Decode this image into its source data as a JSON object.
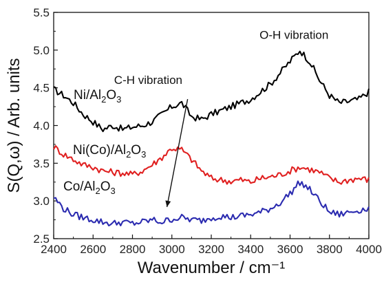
{
  "chart_data": {
    "type": "line",
    "xlabel": "Wavenumber / cm⁻¹",
    "ylabel": "S(Q,ω) / Arb. units",
    "xlim": [
      2400,
      4000
    ],
    "ylim": [
      2.5,
      5.5
    ],
    "xticks": [
      2400,
      2600,
      2800,
      3000,
      3200,
      3400,
      3600,
      3800,
      4000
    ],
    "yticks": [
      2.5,
      3.0,
      3.5,
      4.0,
      4.5,
      5.0,
      5.5
    ],
    "xtick_labels": [
      "2400",
      "2600",
      "2800",
      "3000",
      "3200",
      "3400",
      "3600",
      "3800",
      "4000"
    ],
    "ytick_labels": [
      "2.5",
      "3.0",
      "3.5",
      "4.0",
      "4.5",
      "5.0",
      "5.5"
    ],
    "grid": false,
    "series": [
      {
        "name": "Ni/Al2O3",
        "label_main": "Ni/Al",
        "label_sub": "2",
        "label_tail": "O",
        "label_sub2": "3",
        "color": "#000000",
        "x": [
          2400,
          2450,
          2500,
          2550,
          2600,
          2650,
          2700,
          2750,
          2800,
          2850,
          2900,
          2950,
          3000,
          3050,
          3100,
          3150,
          3200,
          3250,
          3300,
          3350,
          3400,
          3450,
          3500,
          3550,
          3600,
          3650,
          3700,
          3750,
          3800,
          3850,
          3900,
          3950,
          4000
        ],
        "y": [
          4.48,
          4.4,
          4.3,
          4.15,
          4.05,
          3.95,
          4.0,
          3.95,
          3.98,
          4.0,
          4.05,
          4.15,
          4.25,
          4.3,
          4.12,
          4.08,
          4.15,
          4.2,
          4.25,
          4.3,
          4.35,
          4.45,
          4.55,
          4.7,
          4.85,
          5.0,
          4.85,
          4.6,
          4.4,
          4.3,
          4.32,
          4.35,
          4.45
        ]
      },
      {
        "name": "Ni(Co)/Al2O3",
        "label_main": "Ni(Co)/Al",
        "label_sub": "2",
        "label_tail": "O",
        "label_sub2": "3",
        "color": "#e02020",
        "x": [
          2400,
          2450,
          2500,
          2550,
          2600,
          2650,
          2700,
          2750,
          2800,
          2850,
          2900,
          2950,
          3000,
          3050,
          3100,
          3150,
          3200,
          3250,
          3300,
          3350,
          3400,
          3450,
          3500,
          3550,
          3600,
          3650,
          3700,
          3750,
          3800,
          3850,
          3900,
          3950,
          4000
        ],
        "y": [
          3.72,
          3.62,
          3.55,
          3.48,
          3.45,
          3.4,
          3.38,
          3.37,
          3.35,
          3.4,
          3.48,
          3.58,
          3.7,
          3.68,
          3.55,
          3.4,
          3.3,
          3.28,
          3.26,
          3.28,
          3.25,
          3.3,
          3.32,
          3.35,
          3.4,
          3.45,
          3.42,
          3.38,
          3.3,
          3.25,
          3.28,
          3.3,
          3.28
        ]
      },
      {
        "name": "Co/Al2O3",
        "label_main": "Co/Al",
        "label_sub": "2",
        "label_tail": "O",
        "label_sub2": "3",
        "color": "#2b2bb0",
        "x": [
          2400,
          2450,
          2500,
          2550,
          2600,
          2650,
          2700,
          2750,
          2800,
          2850,
          2900,
          2950,
          3000,
          3050,
          3100,
          3150,
          3200,
          3250,
          3300,
          3350,
          3400,
          3450,
          3500,
          3550,
          3600,
          3650,
          3700,
          3750,
          3800,
          3850,
          3900,
          3950,
          4000
        ],
        "y": [
          3.05,
          2.9,
          2.82,
          2.78,
          2.75,
          2.72,
          2.7,
          2.72,
          2.7,
          2.72,
          2.75,
          2.72,
          2.76,
          2.78,
          2.75,
          2.74,
          2.78,
          2.8,
          2.78,
          2.8,
          2.82,
          2.85,
          2.9,
          2.98,
          3.1,
          3.25,
          3.15,
          3.0,
          2.85,
          2.82,
          2.85,
          2.88,
          2.9
        ]
      }
    ],
    "annotations": [
      {
        "text": "C-H vibration",
        "x": 2880,
        "y": 4.55
      },
      {
        "text": "O-H vibration",
        "x": 3620,
        "y": 5.15
      }
    ]
  }
}
